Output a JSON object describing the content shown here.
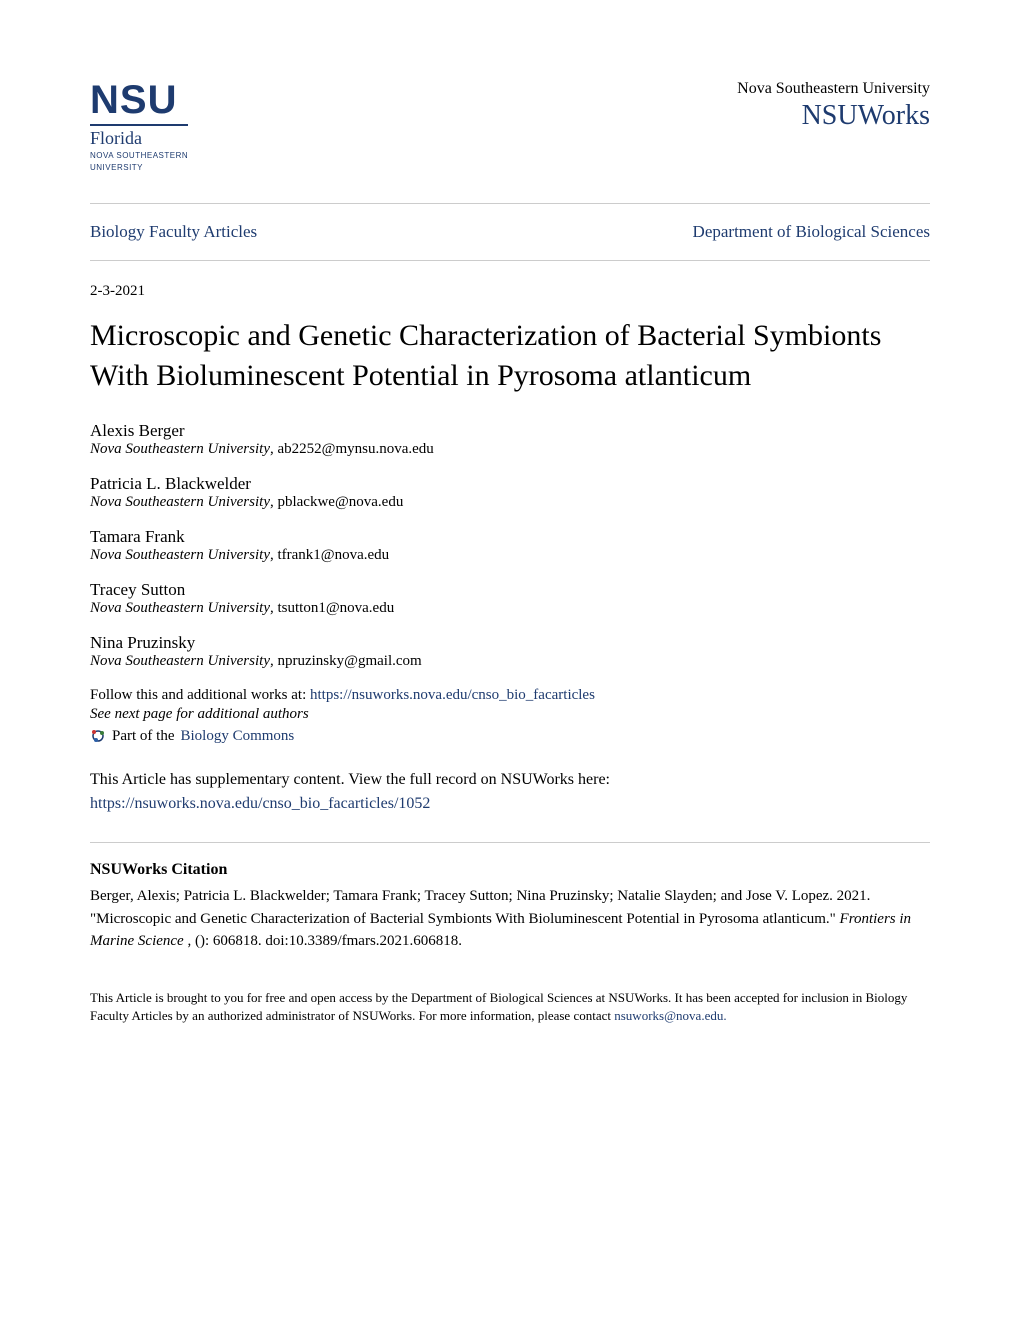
{
  "colors": {
    "brand": "#1e3b6f",
    "text": "#000000",
    "divider": "#cccccc",
    "background": "#ffffff"
  },
  "typography": {
    "body_font": "Georgia, serif",
    "logo_font": "Arial, sans-serif",
    "title_fontsize": 30,
    "body_fontsize": 15,
    "author_name_fontsize": 17
  },
  "logo": {
    "main": "NSU",
    "sub1": "Florida",
    "sub2_line1": "NOVA SOUTHEASTERN",
    "sub2_line2": "UNIVERSITY"
  },
  "header": {
    "university": "Nova Southeastern University",
    "repository": "NSUWorks"
  },
  "nav": {
    "left": "Biology Faculty Articles",
    "right": "Department of Biological Sciences"
  },
  "date": "2-3-2021",
  "title": "Microscopic and Genetic Characterization of Bacterial Symbionts With Bioluminescent Potential in Pyrosoma atlanticum",
  "authors": [
    {
      "name": "Alexis Berger",
      "affil": "Nova Southeastern University",
      "email": "ab2252@mynsu.nova.edu"
    },
    {
      "name": "Patricia L. Blackwelder",
      "affil": "Nova Southeastern University",
      "email": "pblackwe@nova.edu"
    },
    {
      "name": "Tamara Frank",
      "affil": "Nova Southeastern University",
      "email": "tfrank1@nova.edu"
    },
    {
      "name": "Tracey Sutton",
      "affil": "Nova Southeastern University",
      "email": "tsutton1@nova.edu"
    },
    {
      "name": "Nina Pruzinsky",
      "affil": "Nova Southeastern University",
      "email": "npruzinsky@gmail.com"
    }
  ],
  "follow": {
    "prefix": "Follow this and additional works at: ",
    "url": "https://nsuworks.nova.edu/cnso_bio_facarticles",
    "see_next": "See next page for additional authors",
    "part_prefix": "Part of the ",
    "part_link": "Biology Commons"
  },
  "supplementary": {
    "text": "This Article has supplementary content. View the full record on NSUWorks here:",
    "url": "https://nsuworks.nova.edu/cnso_bio_facarticles/1052"
  },
  "citation": {
    "heading": "NSUWorks Citation",
    "body_part1": "Berger, Alexis; Patricia L. Blackwelder; Tamara Frank; Tracey Sutton; Nina Pruzinsky; Natalie Slayden; and Jose V. Lopez. 2021. \"Microscopic and Genetic Characterization of Bacterial Symbionts With Bioluminescent Potential in Pyrosoma atlanticum.\" ",
    "journal": "Frontiers in Marine Science ",
    "body_part2": ", (): 606818. doi:10.3389/fmars.2021.606818."
  },
  "footer": {
    "text_part1": "This Article is brought to you for free and open access by the Department of Biological Sciences at NSUWorks. It has been accepted for inclusion in Biology Faculty Articles by an authorized administrator of NSUWorks. For more information, please contact ",
    "link": "nsuworks@nova.edu.",
    "text_part2": ""
  }
}
